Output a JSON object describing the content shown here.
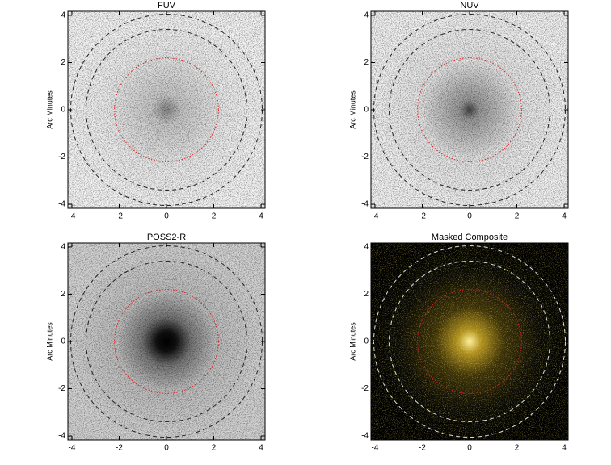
{
  "chart_data": [
    {
      "type": "image",
      "title": "FUV",
      "ylabel": "Arc Minutes",
      "xlim": [
        -4.17,
        4.17
      ],
      "ylim": [
        -4.17,
        4.17
      ],
      "xticks": [
        -4,
        -2,
        0,
        2,
        4
      ],
      "yticks": [
        -4,
        -2,
        0,
        2,
        4
      ],
      "circles": [
        {
          "r": 2.2,
          "color": "#e02020",
          "style": "dotted"
        },
        {
          "r": 3.4,
          "color": "#222222",
          "style": "dashed"
        },
        {
          "r": 4.05,
          "color": "#222222",
          "style": "dashed"
        }
      ]
    },
    {
      "type": "image",
      "title": "NUV",
      "ylabel": "Arc Minutes",
      "xlim": [
        -4.17,
        4.17
      ],
      "ylim": [
        -4.17,
        4.17
      ],
      "xticks": [
        -4,
        -2,
        0,
        2,
        4
      ],
      "yticks": [
        -4,
        -2,
        0,
        2,
        4
      ],
      "circles": [
        {
          "r": 2.2,
          "color": "#e02020",
          "style": "dotted"
        },
        {
          "r": 3.4,
          "color": "#222222",
          "style": "dashed"
        },
        {
          "r": 4.05,
          "color": "#222222",
          "style": "dashed"
        }
      ]
    },
    {
      "type": "image",
      "title": "POSS2-R",
      "ylabel": "Arc Minutes",
      "xlim": [
        -4.17,
        4.17
      ],
      "ylim": [
        -4.17,
        4.17
      ],
      "xticks": [
        -4,
        -2,
        0,
        2,
        4
      ],
      "yticks": [
        -4,
        -2,
        0,
        2,
        4
      ],
      "circles": [
        {
          "r": 2.2,
          "color": "#e02020",
          "style": "dotted"
        },
        {
          "r": 3.4,
          "color": "#222222",
          "style": "dashed"
        },
        {
          "r": 4.05,
          "color": "#222222",
          "style": "dashed"
        }
      ]
    },
    {
      "type": "image",
      "title": "Masked Composite",
      "ylabel": "Arc Minutes",
      "xlim": [
        -4.17,
        4.17
      ],
      "ylim": [
        -4.17,
        4.17
      ],
      "xticks": [
        -4,
        -2,
        0,
        2,
        4
      ],
      "yticks": [
        -4,
        -2,
        0,
        2,
        4
      ],
      "circles": [
        {
          "r": 2.2,
          "color": "#d02020",
          "style": "dotted"
        },
        {
          "r": 3.4,
          "color": "#dddddd",
          "style": "dashed"
        },
        {
          "r": 4.05,
          "color": "#dddddd",
          "style": "dashed"
        }
      ]
    }
  ]
}
